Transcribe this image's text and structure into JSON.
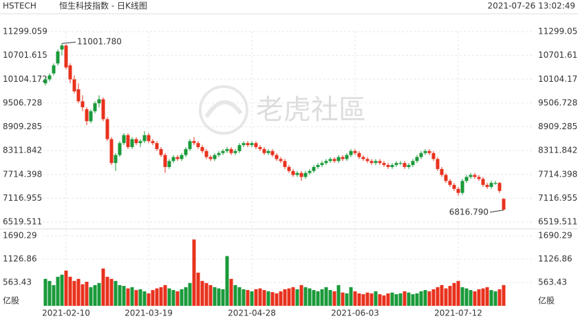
{
  "chart_data": {
    "type": "candlestick",
    "symbol": "HSTECH",
    "title": "恒生科技指数 - 日K线图",
    "timestamp": "2021-07-26 13:02:49",
    "watermark": "老虎社區",
    "volume_unit": "亿股",
    "max_label": "11001.780",
    "min_label": "6816.790",
    "up_color": "#1a9a3a",
    "down_color": "#e8321e",
    "categories": [
      null,
      null,
      null,
      null,
      null,
      "2021-02-10",
      null,
      null,
      null,
      null,
      null,
      null,
      null,
      null,
      null,
      null,
      null,
      null,
      null,
      null,
      null,
      null,
      null,
      null,
      null,
      "2021-03-19",
      null,
      null,
      null,
      null,
      null,
      null,
      null,
      null,
      null,
      null,
      null,
      null,
      null,
      null,
      null,
      null,
      null,
      null,
      null,
      null,
      null,
      null,
      null,
      null,
      "2021-04-28",
      null,
      null,
      null,
      null,
      null,
      null,
      null,
      null,
      null,
      null,
      null,
      null,
      null,
      null,
      null,
      null,
      null,
      null,
      null,
      null,
      null,
      null,
      null,
      null,
      "2021-06-03",
      null,
      null,
      null,
      null,
      null,
      null,
      null,
      null,
      null,
      null,
      null,
      null,
      null,
      null,
      null,
      null,
      null,
      null,
      null,
      null,
      null,
      null,
      null,
      null,
      "2021-07-12",
      null,
      null,
      null,
      null,
      null,
      null,
      null,
      null,
      null,
      null,
      null
    ],
    "ohlc": [
      [
        10000,
        10150,
        9950,
        10100
      ],
      [
        10100,
        10250,
        10050,
        10200
      ],
      [
        10250,
        10500,
        10200,
        10450
      ],
      [
        10500,
        10850,
        10450,
        10800
      ],
      [
        10850,
        11001.78,
        10700,
        10950
      ],
      [
        10950,
        10980,
        10350,
        10400
      ],
      [
        10450,
        10500,
        10000,
        10100
      ],
      [
        10100,
        10200,
        9750,
        9800
      ],
      [
        9850,
        10000,
        9500,
        9550
      ],
      [
        9550,
        9700,
        9300,
        9400
      ],
      [
        9350,
        9400,
        8950,
        9050
      ],
      [
        9050,
        9350,
        9000,
        9300
      ],
      [
        9300,
        9550,
        9250,
        9500
      ],
      [
        9500,
        9700,
        9400,
        9600
      ],
      [
        9600,
        9650,
        9050,
        9100
      ],
      [
        9100,
        9150,
        8550,
        8600
      ],
      [
        8600,
        8650,
        7950,
        8000
      ],
      [
        8000,
        8250,
        7800,
        8200
      ],
      [
        8200,
        8550,
        8150,
        8500
      ],
      [
        8500,
        8750,
        8450,
        8700
      ],
      [
        8700,
        8750,
        8350,
        8400
      ],
      [
        8400,
        8650,
        8350,
        8600
      ],
      [
        8600,
        8650,
        8450,
        8500
      ],
      [
        8500,
        8600,
        8400,
        8550
      ],
      [
        8550,
        8800,
        8500,
        8700
      ],
      [
        8700,
        8750,
        8500,
        8550
      ],
      [
        8550,
        8600,
        8450,
        8500
      ],
      [
        8500,
        8550,
        8300,
        8350
      ],
      [
        8350,
        8400,
        8150,
        8200
      ],
      [
        8200,
        8250,
        7750,
        7900
      ],
      [
        7900,
        8100,
        7850,
        8050
      ],
      [
        8050,
        8200,
        8000,
        8150
      ],
      [
        8150,
        8200,
        8050,
        8100
      ],
      [
        8100,
        8250,
        8050,
        8200
      ],
      [
        8200,
        8400,
        8150,
        8350
      ],
      [
        8350,
        8600,
        8300,
        8550
      ],
      [
        8550,
        8650,
        8450,
        8500
      ],
      [
        8500,
        8550,
        8350,
        8400
      ],
      [
        8400,
        8450,
        8250,
        8300
      ],
      [
        8300,
        8350,
        8100,
        8150
      ],
      [
        8150,
        8200,
        8050,
        8100
      ],
      [
        8100,
        8250,
        8050,
        8200
      ],
      [
        8200,
        8300,
        8150,
        8250
      ],
      [
        8250,
        8350,
        8200,
        8300
      ],
      [
        8300,
        8400,
        8250,
        8350
      ],
      [
        8350,
        8400,
        8200,
        8250
      ],
      [
        8250,
        8350,
        8200,
        8300
      ],
      [
        8300,
        8500,
        8250,
        8450
      ],
      [
        8450,
        8550,
        8400,
        8500
      ],
      [
        8500,
        8550,
        8400,
        8450
      ],
      [
        8450,
        8550,
        8400,
        8500
      ],
      [
        8500,
        8550,
        8350,
        8400
      ],
      [
        8400,
        8450,
        8300,
        8350
      ],
      [
        8350,
        8400,
        8200,
        8250
      ],
      [
        8250,
        8350,
        8200,
        8300
      ],
      [
        8300,
        8350,
        8150,
        8200
      ],
      [
        8200,
        8250,
        8050,
        8100
      ],
      [
        8100,
        8150,
        8000,
        8050
      ],
      [
        8050,
        8100,
        7850,
        7900
      ],
      [
        7900,
        7950,
        7750,
        7800
      ],
      [
        7800,
        7850,
        7650,
        7700
      ],
      [
        7700,
        7800,
        7650,
        7750
      ],
      [
        7750,
        7800,
        7550,
        7650
      ],
      [
        7650,
        7800,
        7600,
        7750
      ],
      [
        7750,
        7850,
        7700,
        7800
      ],
      [
        7800,
        7950,
        7750,
        7900
      ],
      [
        7900,
        8000,
        7850,
        7950
      ],
      [
        7950,
        8050,
        7900,
        8000
      ],
      [
        8000,
        8100,
        7950,
        8050
      ],
      [
        8050,
        8150,
        8000,
        8100
      ],
      [
        8100,
        8150,
        8000,
        8050
      ],
      [
        8050,
        8200,
        8000,
        8150
      ],
      [
        8150,
        8200,
        8050,
        8100
      ],
      [
        8100,
        8250,
        8050,
        8200
      ],
      [
        8200,
        8350,
        8150,
        8300
      ],
      [
        8300,
        8350,
        8200,
        8250
      ],
      [
        8250,
        8300,
        8100,
        8150
      ],
      [
        8150,
        8200,
        8050,
        8100
      ],
      [
        8100,
        8150,
        8000,
        8050
      ],
      [
        8050,
        8100,
        7950,
        8000
      ],
      [
        8000,
        8100,
        7950,
        8050
      ],
      [
        8050,
        8100,
        7950,
        8000
      ],
      [
        8000,
        8050,
        7900,
        7950
      ],
      [
        7950,
        8000,
        7850,
        7900
      ],
      [
        7900,
        8000,
        7850,
        7950
      ],
      [
        7950,
        8050,
        7900,
        8000
      ],
      [
        7980,
        8050,
        7950,
        8000
      ],
      [
        8000,
        8050,
        7850,
        7900
      ],
      [
        7900,
        8000,
        7850,
        7950
      ],
      [
        7950,
        8100,
        7900,
        8050
      ],
      [
        8050,
        8200,
        8000,
        8150
      ],
      [
        8150,
        8300,
        8100,
        8250
      ],
      [
        8250,
        8350,
        8200,
        8300
      ],
      [
        8300,
        8350,
        8200,
        8250
      ],
      [
        8250,
        8300,
        8050,
        8100
      ],
      [
        8100,
        8150,
        7800,
        7850
      ],
      [
        7850,
        7900,
        7650,
        7700
      ],
      [
        7700,
        7750,
        7500,
        7550
      ],
      [
        7550,
        7600,
        7400,
        7450
      ],
      [
        7450,
        7500,
        7300,
        7350
      ],
      [
        7350,
        7400,
        7180,
        7250
      ],
      [
        7250,
        7600,
        7200,
        7550
      ],
      [
        7550,
        7700,
        7500,
        7650
      ],
      [
        7650,
        7750,
        7600,
        7700
      ],
      [
        7700,
        7750,
        7600,
        7650
      ],
      [
        7650,
        7700,
        7550,
        7600
      ],
      [
        7600,
        7650,
        7400,
        7450
      ],
      [
        7450,
        7500,
        7350,
        7400
      ],
      [
        7400,
        7550,
        7350,
        7500
      ],
      [
        7480,
        7550,
        7450,
        7500
      ],
      [
        7500,
        7520,
        7250,
        7300
      ],
      [
        7100,
        7120,
        6816.79,
        6830
      ]
    ],
    "volume": [
      650,
      600,
      500,
      700,
      750,
      850,
      700,
      600,
      650,
      520,
      580,
      450,
      500,
      550,
      900,
      700,
      650,
      600,
      500,
      480,
      420,
      450,
      380,
      400,
      350,
      300,
      380,
      420,
      450,
      500,
      420,
      380,
      350,
      400,
      450,
      550,
      1600,
      800,
      600,
      550,
      500,
      450,
      420,
      400,
      1200,
      650,
      500,
      450,
      400,
      380,
      350,
      400,
      420,
      380,
      350,
      330,
      300,
      350,
      400,
      420,
      450,
      400,
      500,
      450,
      420,
      380,
      350,
      400,
      450,
      380,
      350,
      500,
      320,
      300,
      450,
      350,
      300,
      280,
      320,
      300,
      350,
      280,
      250,
      300,
      320,
      280,
      300,
      350,
      320,
      280,
      300,
      350,
      380,
      350,
      400,
      450,
      500,
      420,
      480,
      550,
      600,
      450,
      420,
      380,
      350,
      400,
      420,
      450,
      380,
      350,
      400,
      500
    ],
    "ylim": [
      6519.511,
      11299.059
    ],
    "yticks": [
      11299.059,
      10701.615,
      10104.172,
      9506.728,
      8909.285,
      8311.842,
      7714.398,
      7116.955,
      6519.511
    ],
    "volume_ylim": [
      0,
      1690.29
    ],
    "volume_yticks": [
      1690.29,
      1126.86,
      563.43
    ],
    "grid": true
  }
}
